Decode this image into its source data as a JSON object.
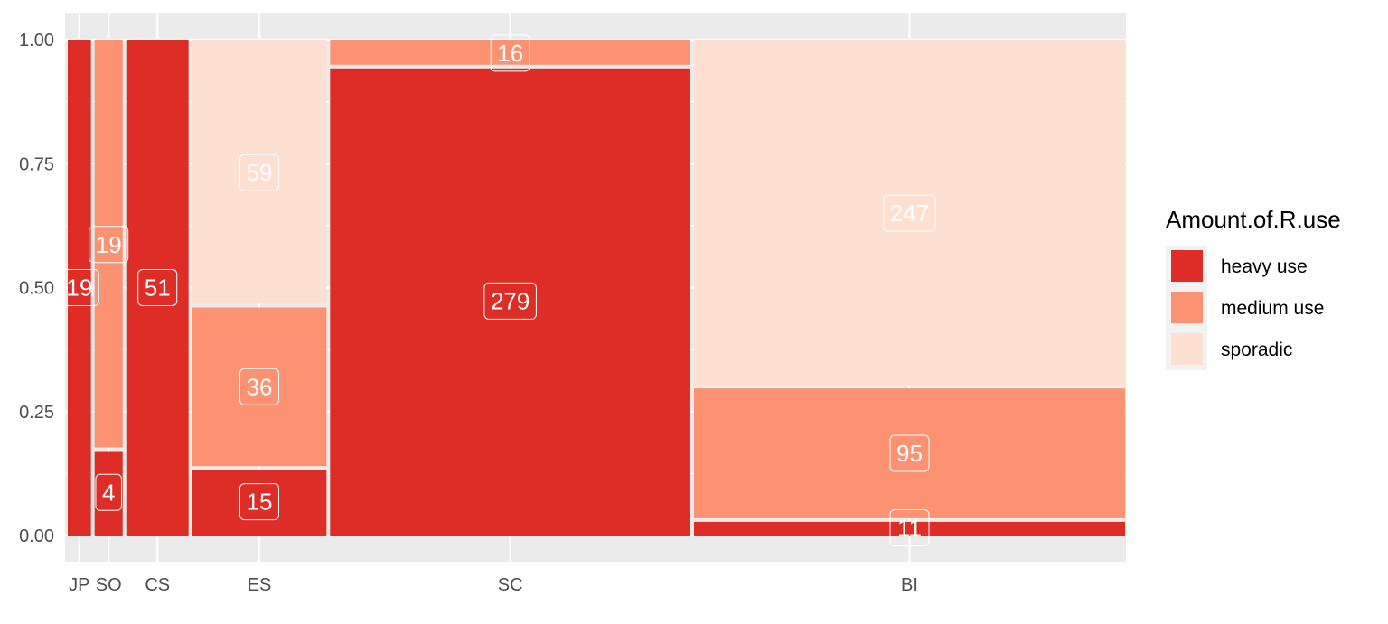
{
  "chart_data": {
    "type": "mosaic",
    "categories": [
      "JP",
      "SO",
      "CS",
      "ES",
      "SC",
      "BI"
    ],
    "category_totals": [
      19,
      23,
      51,
      110,
      295,
      353
    ],
    "segments": [
      "heavy use",
      "medium use",
      "sporadic"
    ],
    "counts": {
      "JP": [
        19,
        0,
        0
      ],
      "SO": [
        4,
        19,
        0
      ],
      "CS": [
        51,
        0,
        0
      ],
      "ES": [
        15,
        36,
        59
      ],
      "SC": [
        279,
        16,
        0
      ],
      "BI": [
        11,
        95,
        247
      ]
    },
    "y_ticks": [
      "0.00",
      "0.25",
      "0.50",
      "0.75",
      "1.00"
    ],
    "ylim": [
      0,
      1
    ],
    "grid": true,
    "legend": {
      "title": "Amount.of.R.use",
      "position": "right",
      "entries": [
        {
          "label": "heavy use",
          "color": "#de2d26"
        },
        {
          "label": "medium use",
          "color": "#fc9272"
        },
        {
          "label": "sporadic",
          "color": "#fee0d2"
        }
      ]
    }
  }
}
